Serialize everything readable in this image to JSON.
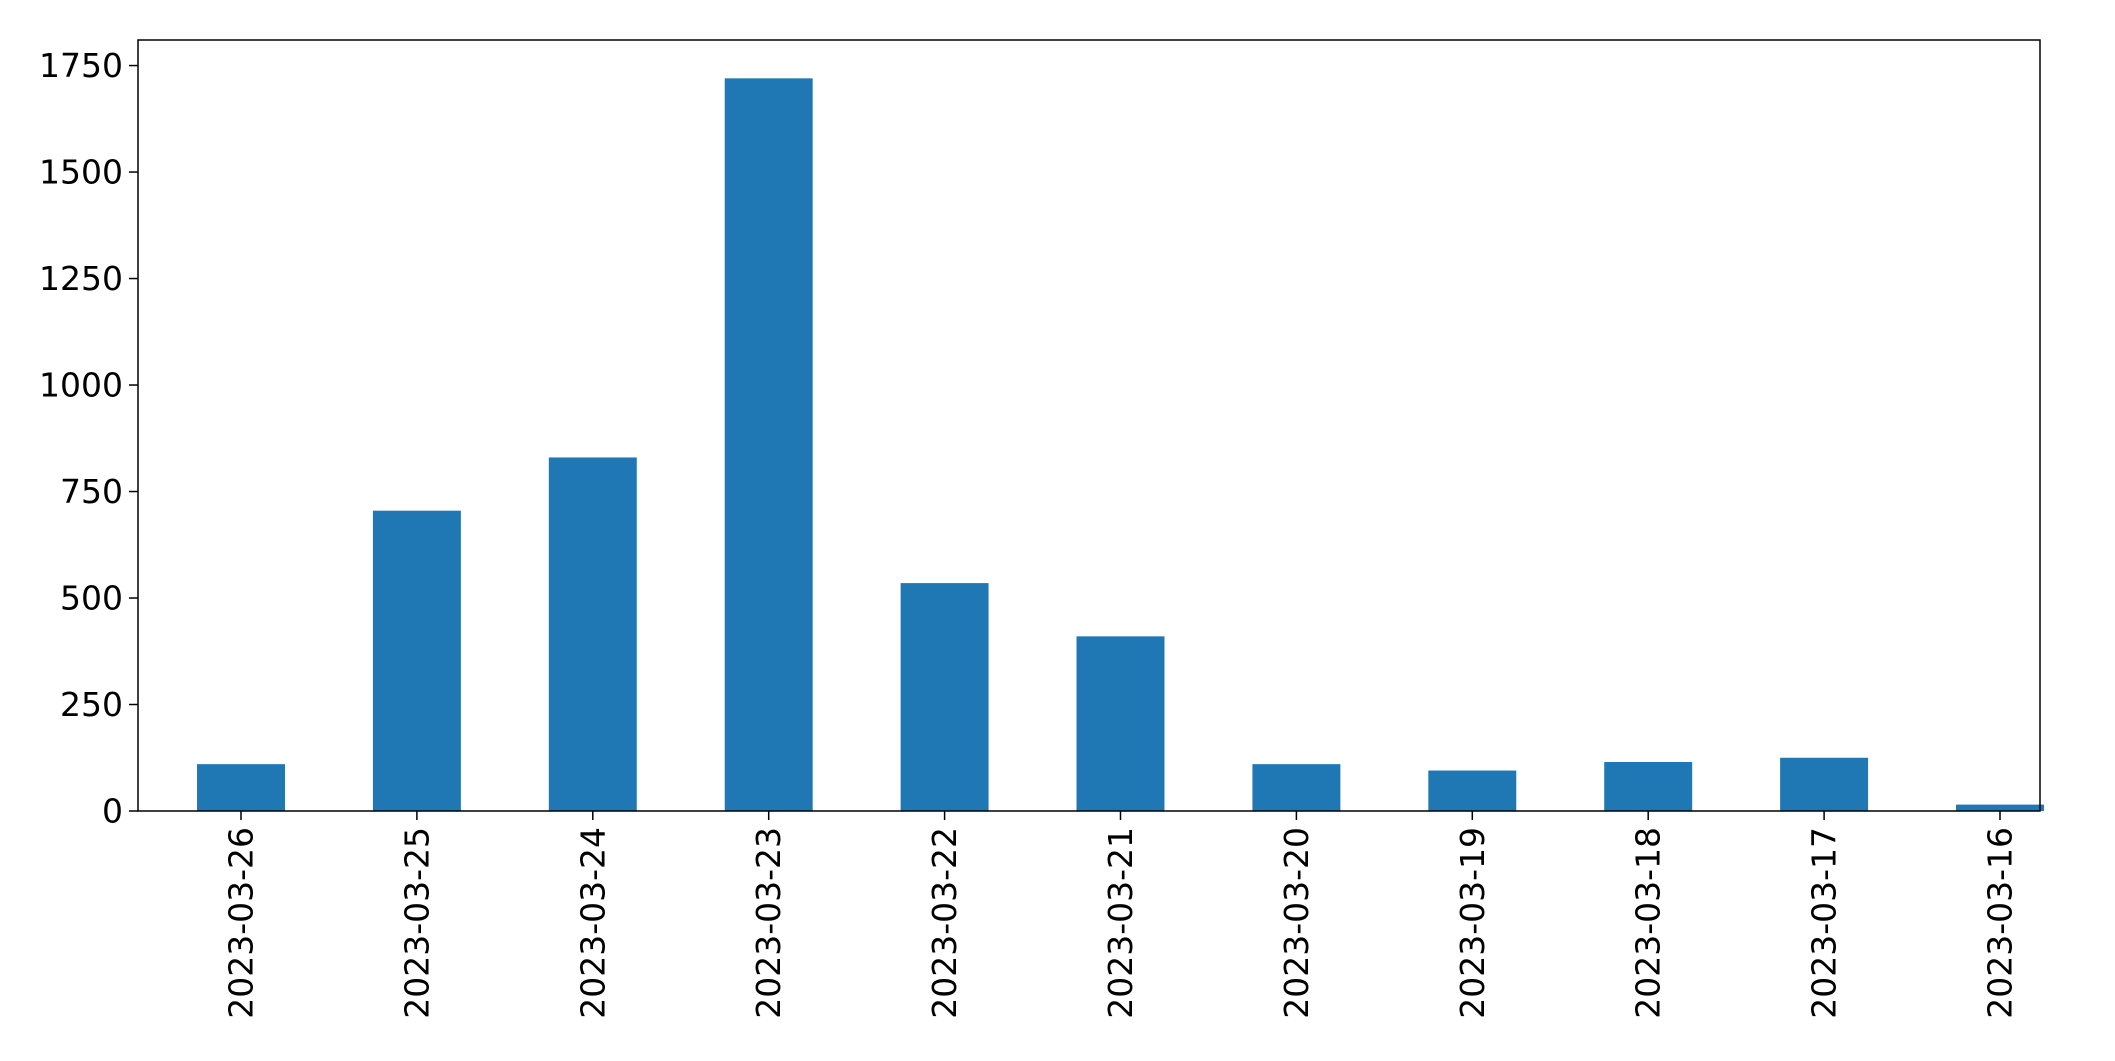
{
  "chart_data": {
    "type": "bar",
    "title": "",
    "xlabel": "",
    "ylabel": "",
    "categories": [
      "2023-03-26",
      "2023-03-25",
      "2023-03-24",
      "2023-03-23",
      "2023-03-22",
      "2023-03-21",
      "2023-03-20",
      "2023-03-19",
      "2023-03-18",
      "2023-03-17",
      "2023-03-16"
    ],
    "values": [
      110,
      705,
      830,
      1720,
      535,
      410,
      110,
      95,
      115,
      125,
      15
    ],
    "ylim": [
      0,
      1810
    ],
    "yticks": [
      0,
      250,
      500,
      750,
      1000,
      1250,
      1500,
      1750
    ],
    "bar_color": "#1f77b4",
    "grid": false,
    "legend": "none"
  }
}
